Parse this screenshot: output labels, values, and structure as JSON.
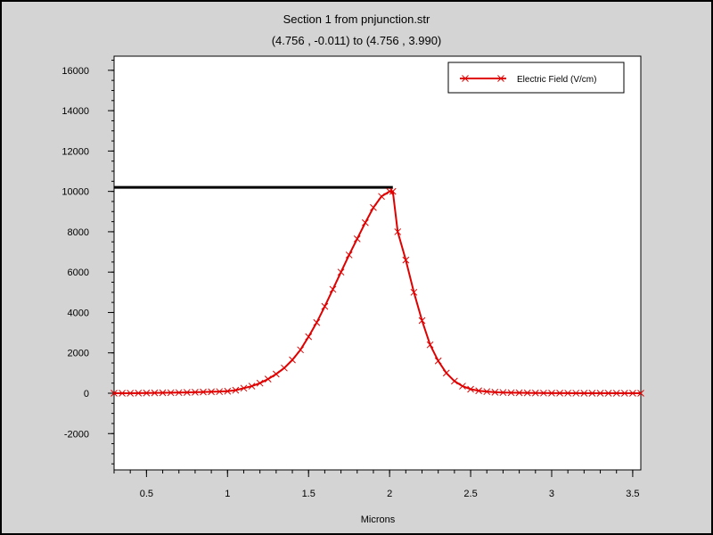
{
  "chart_data": {
    "type": "line",
    "title": "Section 1 from pnjunction.str",
    "subtitle": "(4.756 , -0.011) to (4.756 , 3.990)",
    "xlabel": "Microns",
    "ylabel": "",
    "xlim": [
      0.3,
      3.55
    ],
    "ylim": [
      -3800,
      16700
    ],
    "xticks": [
      0.5,
      1,
      1.5,
      2,
      2.5,
      3,
      3.5
    ],
    "xtick_labels": [
      "0.5",
      "1",
      "1.5",
      "2",
      "2.5",
      "3",
      "3.5"
    ],
    "yticks": [
      16000,
      14000,
      12000,
      10000,
      8000,
      6000,
      4000,
      2000,
      0,
      -2000
    ],
    "ytick_labels": [
      "16000",
      "14000",
      "12000",
      "10000",
      "8000",
      "6000",
      "4000",
      "2000",
      "0",
      "-2000"
    ],
    "legend": {
      "placement": "top-right",
      "entries": [
        "Electric Field (V/cm)"
      ]
    },
    "grid": false,
    "colors": {
      "series": "#e00000",
      "reference_line": "#000000",
      "plot_bg": "#ffffff",
      "frame_bg": "#d4d4d4"
    },
    "reference_line": {
      "x": [
        0.3,
        2.02
      ],
      "y": [
        10200,
        10200
      ]
    },
    "series": [
      {
        "name": "Electric Field (V/cm)",
        "marker": "x",
        "x": [
          0.3,
          0.35,
          0.4,
          0.45,
          0.5,
          0.55,
          0.6,
          0.65,
          0.7,
          0.75,
          0.8,
          0.85,
          0.9,
          0.95,
          1.0,
          1.05,
          1.1,
          1.15,
          1.2,
          1.25,
          1.3,
          1.35,
          1.4,
          1.45,
          1.5,
          1.55,
          1.6,
          1.65,
          1.7,
          1.75,
          1.8,
          1.85,
          1.9,
          1.95,
          2.0,
          2.02,
          2.05,
          2.1,
          2.15,
          2.2,
          2.25,
          2.3,
          2.35,
          2.4,
          2.45,
          2.5,
          2.55,
          2.6,
          2.65,
          2.7,
          2.75,
          2.8,
          2.85,
          2.9,
          2.95,
          3.0,
          3.05,
          3.1,
          3.15,
          3.2,
          3.25,
          3.3,
          3.35,
          3.4,
          3.45,
          3.5,
          3.55
        ],
        "y": [
          0,
          0,
          0,
          5,
          10,
          15,
          20,
          25,
          30,
          40,
          50,
          60,
          70,
          80,
          100,
          150,
          250,
          350,
          500,
          700,
          950,
          1250,
          1650,
          2150,
          2800,
          3500,
          4300,
          5150,
          6000,
          6850,
          7650,
          8450,
          9200,
          9750,
          10000,
          10000,
          8000,
          6600,
          5000,
          3600,
          2400,
          1600,
          1000,
          600,
          350,
          200,
          120,
          80,
          50,
          35,
          25,
          20,
          15,
          10,
          8,
          5,
          5,
          3,
          2,
          0,
          0,
          0,
          0,
          0,
          0,
          0,
          0
        ]
      }
    ]
  }
}
